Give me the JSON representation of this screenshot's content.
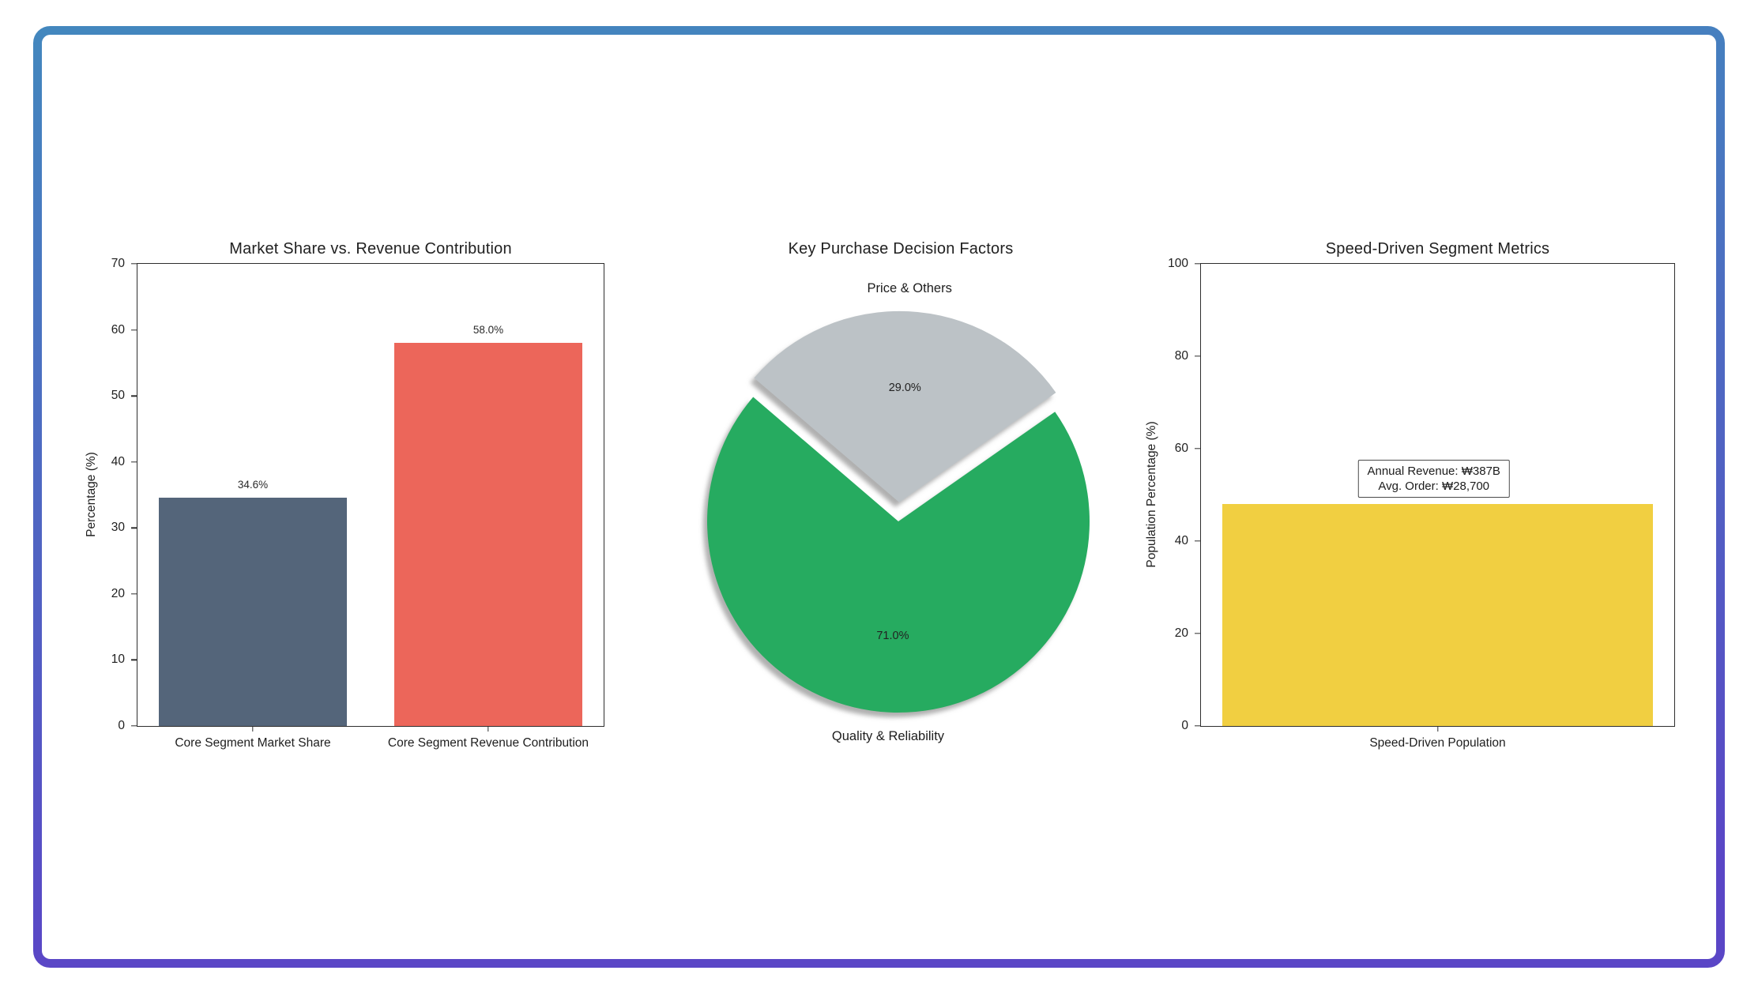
{
  "frame": {
    "border_gradient_top": "#4387BE",
    "border_gradient_bottom": "#5A46C6",
    "background": "#FFFFFF"
  },
  "chart_data": [
    {
      "type": "bar",
      "title": "Market Share vs. Revenue Contribution",
      "ylabel": "Percentage (%)",
      "categories": [
        "Core Segment Market Share",
        "Core Segment Revenue Contribution"
      ],
      "values": [
        34.6,
        58.0
      ],
      "value_labels": [
        "34.6%",
        "58.0%"
      ],
      "bar_colors": [
        "#54657A",
        "#EC665A"
      ],
      "ylim": [
        0,
        70
      ],
      "yticks": [
        0,
        10,
        20,
        30,
        40,
        50,
        60,
        70
      ],
      "grid": false,
      "legend": "none"
    },
    {
      "type": "pie",
      "title": "Key Purchase Decision Factors",
      "slices": [
        {
          "label": "Quality & Reliability",
          "value": 71.0,
          "pct_label": "71.0%",
          "color": "#27AB60",
          "explode": 0
        },
        {
          "label": "Price & Others",
          "value": 29.0,
          "pct_label": "29.0%",
          "color": "#BCC2C6",
          "explode": 0.1
        }
      ],
      "start_angle_deg": 139.4,
      "counterclockwise": true,
      "shadow": true,
      "legend": "none"
    },
    {
      "type": "bar",
      "title": "Speed-Driven Segment Metrics",
      "ylabel": "Population Percentage (%)",
      "categories": [
        "Speed-Driven Population"
      ],
      "values": [
        48
      ],
      "bar_colors": [
        "#F1CF41"
      ],
      "ylim": [
        0,
        100
      ],
      "yticks": [
        0,
        20,
        40,
        60,
        80,
        100
      ],
      "grid": false,
      "legend": "none",
      "annotation": {
        "lines": [
          "Annual Revenue: ₩387B",
          "Avg. Order: ₩28,700"
        ]
      }
    }
  ]
}
